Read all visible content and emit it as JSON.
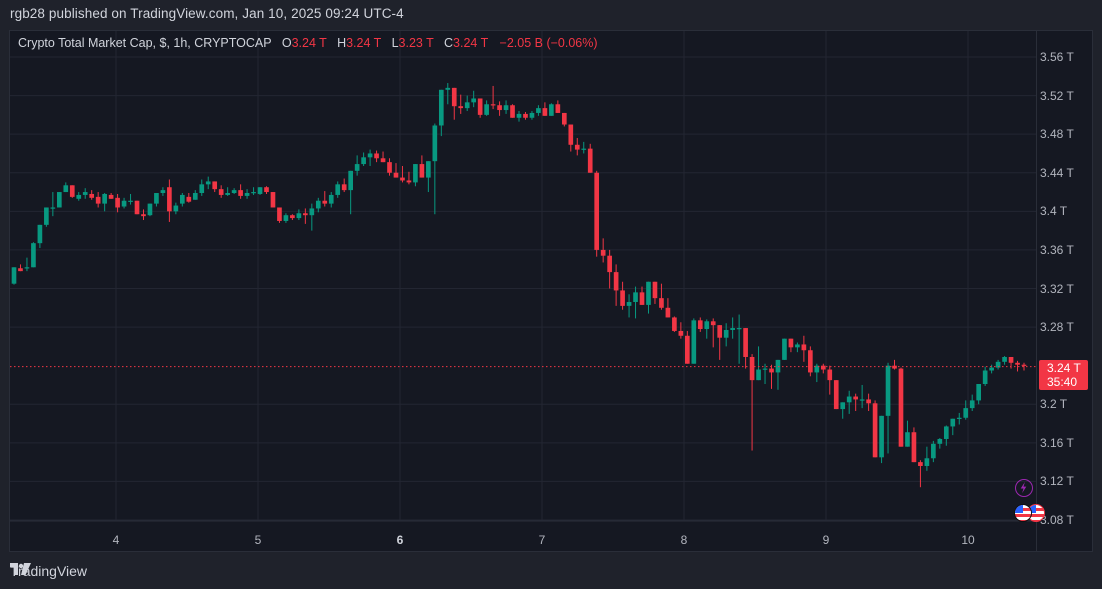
{
  "header": {
    "publish_line": "rgb28 published on TradingView.com, Jan 10, 2025 09:24 UTC-4"
  },
  "legend": {
    "symbol": "Crypto Total Market Cap, $, 1h, CRYPTOCAP",
    "o_label": "O",
    "o_value": "3.24 T",
    "h_label": "H",
    "h_value": "3.24 T",
    "l_label": "L",
    "l_value": "3.23 T",
    "c_label": "C",
    "c_value": "3.24 T",
    "change": "−2.05 B (−0.06%)"
  },
  "price_tag": {
    "price": "3.24 T",
    "countdown": "35:40"
  },
  "footer": {
    "brand": "TradingView"
  },
  "colors": {
    "up": "#089981",
    "down": "#f23645",
    "background": "#151822",
    "grid": "#232632",
    "price_line": "#f23645",
    "event_purple": "#9c27b0"
  },
  "events": [
    {
      "type": "lightning-event"
    },
    {
      "type": "us-flag-economic-event"
    }
  ],
  "chart_data": {
    "type": "candlestick",
    "title": "Crypto Total Market Cap, $, 1h, CRYPTOCAP",
    "xlabel": "",
    "ylabel": "",
    "y_ticks": [
      "3.56 T",
      "3.52 T",
      "3.48 T",
      "3.44 T",
      "3.4 T",
      "3.36 T",
      "3.32 T",
      "3.28 T",
      "3.2 T",
      "3.16 T",
      "3.12 T",
      "3.08 T"
    ],
    "y_tick_values": [
      3.56,
      3.52,
      3.48,
      3.44,
      3.4,
      3.36,
      3.32,
      3.28,
      3.2,
      3.16,
      3.12,
      3.08
    ],
    "x_ticks": [
      "4",
      "5",
      "6",
      "7",
      "8",
      "9",
      "10"
    ],
    "x_tick_bold": "6",
    "ylim": [
      3.06,
      3.58
    ],
    "grid": true,
    "current_price": 3.24,
    "candle_fields": [
      "open",
      "high",
      "low",
      "close"
    ],
    "candles": [
      [
        3.325,
        3.342,
        3.324,
        3.342
      ],
      [
        3.341,
        3.345,
        3.339,
        3.338
      ],
      [
        3.341,
        3.352,
        3.338,
        3.342
      ],
      [
        3.342,
        3.368,
        3.342,
        3.367
      ],
      [
        3.367,
        3.384,
        3.362,
        3.386
      ],
      [
        3.386,
        3.404,
        3.384,
        3.404
      ],
      [
        3.404,
        3.42,
        3.395,
        3.404
      ],
      [
        3.404,
        3.416,
        3.404,
        3.42
      ],
      [
        3.42,
        3.43,
        3.42,
        3.427
      ],
      [
        3.427,
        3.42,
        3.414,
        3.415
      ],
      [
        3.413,
        3.42,
        3.411,
        3.417
      ],
      [
        3.417,
        3.424,
        3.413,
        3.42
      ],
      [
        3.418,
        3.422,
        3.412,
        3.414
      ],
      [
        3.415,
        3.42,
        3.404,
        3.408
      ],
      [
        3.408,
        3.419,
        3.4,
        3.418
      ],
      [
        3.417,
        3.419,
        3.413,
        3.413
      ],
      [
        3.414,
        3.418,
        3.399,
        3.404
      ],
      [
        3.405,
        3.414,
        3.403,
        3.411
      ],
      [
        3.411,
        3.418,
        3.407,
        3.411
      ],
      [
        3.411,
        3.41,
        3.397,
        3.397
      ],
      [
        3.397,
        3.402,
        3.391,
        3.395
      ],
      [
        3.396,
        3.407,
        3.395,
        3.408
      ],
      [
        3.408,
        3.418,
        3.405,
        3.419
      ],
      [
        3.419,
        3.425,
        3.416,
        3.422
      ],
      [
        3.425,
        3.433,
        3.389,
        3.4
      ],
      [
        3.4,
        3.409,
        3.397,
        3.406
      ],
      [
        3.408,
        3.419,
        3.405,
        3.417
      ],
      [
        3.415,
        3.419,
        3.409,
        3.41
      ],
      [
        3.412,
        3.422,
        3.413,
        3.419
      ],
      [
        3.419,
        3.433,
        3.416,
        3.428
      ],
      [
        3.428,
        3.436,
        3.423,
        3.431
      ],
      [
        3.431,
        3.426,
        3.42,
        3.423
      ],
      [
        3.423,
        3.427,
        3.414,
        3.417
      ],
      [
        3.417,
        3.425,
        3.416,
        3.419
      ],
      [
        3.419,
        3.424,
        3.418,
        3.422
      ],
      [
        3.422,
        3.428,
        3.413,
        3.416
      ],
      [
        3.416,
        3.423,
        3.413,
        3.419
      ],
      [
        3.419,
        3.425,
        3.417,
        3.42
      ],
      [
        3.418,
        3.425,
        3.417,
        3.425
      ],
      [
        3.425,
        3.426,
        3.418,
        3.42
      ],
      [
        3.42,
        3.419,
        3.408,
        3.404
      ],
      [
        3.404,
        3.4,
        3.388,
        3.39
      ],
      [
        3.39,
        3.398,
        3.388,
        3.396
      ],
      [
        3.396,
        3.397,
        3.391,
        3.393
      ],
      [
        3.393,
        3.402,
        3.391,
        3.398
      ],
      [
        3.398,
        3.403,
        3.387,
        3.396
      ],
      [
        3.396,
        3.408,
        3.38,
        3.403
      ],
      [
        3.403,
        3.414,
        3.399,
        3.411
      ],
      [
        3.411,
        3.421,
        3.405,
        3.408
      ],
      [
        3.408,
        3.42,
        3.404,
        3.417
      ],
      [
        3.417,
        3.431,
        3.414,
        3.428
      ],
      [
        3.428,
        3.434,
        3.42,
        3.422
      ],
      [
        3.422,
        3.437,
        3.397,
        3.442
      ],
      [
        3.442,
        3.458,
        3.437,
        3.449
      ],
      [
        3.449,
        3.461,
        3.447,
        3.456
      ],
      [
        3.456,
        3.464,
        3.447,
        3.46
      ],
      [
        3.46,
        3.463,
        3.451,
        3.455
      ],
      [
        3.455,
        3.462,
        3.451,
        3.451
      ],
      [
        3.451,
        3.455,
        3.437,
        3.44
      ],
      [
        3.44,
        3.45,
        3.436,
        3.435
      ],
      [
        3.435,
        3.447,
        3.43,
        3.432
      ],
      [
        3.432,
        3.441,
        3.428,
        3.43
      ],
      [
        3.43,
        3.449,
        3.426,
        3.449
      ],
      [
        3.449,
        3.458,
        3.44,
        3.435
      ],
      [
        3.435,
        3.452,
        3.42,
        3.452
      ],
      [
        3.452,
        3.491,
        3.397,
        3.489
      ],
      [
        3.489,
        3.526,
        3.478,
        3.526
      ],
      [
        3.526,
        3.533,
        3.511,
        3.528
      ],
      [
        3.528,
        3.527,
        3.495,
        3.509
      ],
      [
        3.509,
        3.521,
        3.501,
        3.507
      ],
      [
        3.507,
        3.52,
        3.504,
        3.513
      ],
      [
        3.513,
        3.525,
        3.508,
        3.517
      ],
      [
        3.517,
        3.516,
        3.497,
        3.5
      ],
      [
        3.5,
        3.515,
        3.499,
        3.511
      ],
      [
        3.511,
        3.53,
        3.506,
        3.51
      ],
      [
        3.51,
        3.514,
        3.499,
        3.505
      ],
      [
        3.505,
        3.515,
        3.501,
        3.51
      ],
      [
        3.51,
        3.511,
        3.497,
        3.497
      ],
      [
        3.497,
        3.504,
        3.493,
        3.501
      ],
      [
        3.501,
        3.503,
        3.495,
        3.497
      ],
      [
        3.497,
        3.504,
        3.495,
        3.502
      ],
      [
        3.502,
        3.51,
        3.499,
        3.507
      ],
      [
        3.507,
        3.513,
        3.499,
        3.499
      ],
      [
        3.499,
        3.512,
        3.499,
        3.511
      ],
      [
        3.511,
        3.515,
        3.505,
        3.502
      ],
      [
        3.502,
        3.499,
        3.488,
        3.49
      ],
      [
        3.49,
        3.489,
        3.462,
        3.469
      ],
      [
        3.469,
        3.476,
        3.458,
        3.464
      ],
      [
        3.464,
        3.472,
        3.46,
        3.465
      ],
      [
        3.465,
        3.47,
        3.447,
        3.44
      ],
      [
        3.44,
        3.442,
        3.353,
        3.36
      ],
      [
        3.36,
        3.372,
        3.347,
        3.354
      ],
      [
        3.354,
        3.36,
        3.32,
        3.337
      ],
      [
        3.337,
        3.345,
        3.302,
        3.318
      ],
      [
        3.318,
        3.327,
        3.298,
        3.302
      ],
      [
        3.302,
        3.314,
        3.29,
        3.306
      ],
      [
        3.306,
        3.322,
        3.289,
        3.316
      ],
      [
        3.316,
        3.322,
        3.31,
        3.303
      ],
      [
        3.303,
        3.307,
        3.294,
        3.327
      ],
      [
        3.327,
        3.327,
        3.304,
        3.31
      ],
      [
        3.31,
        3.325,
        3.298,
        3.3
      ],
      [
        3.3,
        3.31,
        3.295,
        3.29
      ],
      [
        3.29,
        3.291,
        3.275,
        3.276
      ],
      [
        3.276,
        3.285,
        3.268,
        3.271
      ],
      [
        3.271,
        3.276,
        3.259,
        3.242
      ],
      [
        3.242,
        3.289,
        3.242,
        3.287
      ],
      [
        3.287,
        3.29,
        3.275,
        3.278
      ],
      [
        3.278,
        3.288,
        3.268,
        3.286
      ],
      [
        3.286,
        3.289,
        3.259,
        3.282
      ],
      [
        3.282,
        3.282,
        3.246,
        3.269
      ],
      [
        3.269,
        3.284,
        3.26,
        3.277
      ],
      [
        3.277,
        3.29,
        3.268,
        3.279
      ],
      [
        3.279,
        3.293,
        3.242,
        3.279
      ],
      [
        3.279,
        3.279,
        3.237,
        3.249
      ],
      [
        3.249,
        3.252,
        3.152,
        3.225
      ],
      [
        3.225,
        3.26,
        3.228,
        3.236
      ],
      [
        3.236,
        3.242,
        3.221,
        3.237
      ],
      [
        3.237,
        3.241,
        3.216,
        3.233
      ],
      [
        3.233,
        3.246,
        3.215,
        3.246
      ],
      [
        3.246,
        3.268,
        3.246,
        3.268
      ],
      [
        3.268,
        3.267,
        3.254,
        3.259
      ],
      [
        3.259,
        3.264,
        3.254,
        3.262
      ],
      [
        3.262,
        3.271,
        3.244,
        3.256
      ],
      [
        3.256,
        3.26,
        3.229,
        3.233
      ],
      [
        3.233,
        3.242,
        3.223,
        3.24
      ],
      [
        3.24,
        3.242,
        3.232,
        3.236
      ],
      [
        3.236,
        3.24,
        3.21,
        3.225
      ],
      [
        3.225,
        3.215,
        3.196,
        3.195
      ],
      [
        3.195,
        3.202,
        3.185,
        3.202
      ],
      [
        3.202,
        3.214,
        3.19,
        3.208
      ],
      [
        3.208,
        3.211,
        3.193,
        3.205
      ],
      [
        3.205,
        3.22,
        3.196,
        3.205
      ],
      [
        3.205,
        3.211,
        3.193,
        3.201
      ],
      [
        3.201,
        3.204,
        3.15,
        3.145
      ],
      [
        3.145,
        3.188,
        3.139,
        3.188
      ],
      [
        3.188,
        3.243,
        3.149,
        3.24
      ],
      [
        3.24,
        3.246,
        3.236,
        3.237
      ],
      [
        3.237,
        3.238,
        3.158,
        3.156
      ],
      [
        3.156,
        3.183,
        3.158,
        3.171
      ],
      [
        3.171,
        3.176,
        3.151,
        3.14
      ],
      [
        3.14,
        3.142,
        3.114,
        3.136
      ],
      [
        3.136,
        3.156,
        3.131,
        3.144
      ],
      [
        3.144,
        3.162,
        3.14,
        3.159
      ],
      [
        3.159,
        3.165,
        3.154,
        3.164
      ],
      [
        3.164,
        3.178,
        3.157,
        3.177
      ],
      [
        3.177,
        3.185,
        3.168,
        3.185
      ],
      [
        3.185,
        3.191,
        3.179,
        3.186
      ],
      [
        3.186,
        3.204,
        3.184,
        3.196
      ],
      [
        3.196,
        3.21,
        3.193,
        3.204
      ],
      [
        3.204,
        3.218,
        3.2,
        3.221
      ],
      [
        3.221,
        3.239,
        3.219,
        3.235
      ],
      [
        3.235,
        3.241,
        3.232,
        3.238
      ],
      [
        3.238,
        3.246,
        3.236,
        3.244
      ],
      [
        3.244,
        3.25,
        3.241,
        3.249
      ],
      [
        3.249,
        3.249,
        3.237,
        3.243
      ],
      [
        3.243,
        3.245,
        3.234,
        3.241
      ],
      [
        3.241,
        3.243,
        3.235,
        3.24
      ]
    ]
  }
}
